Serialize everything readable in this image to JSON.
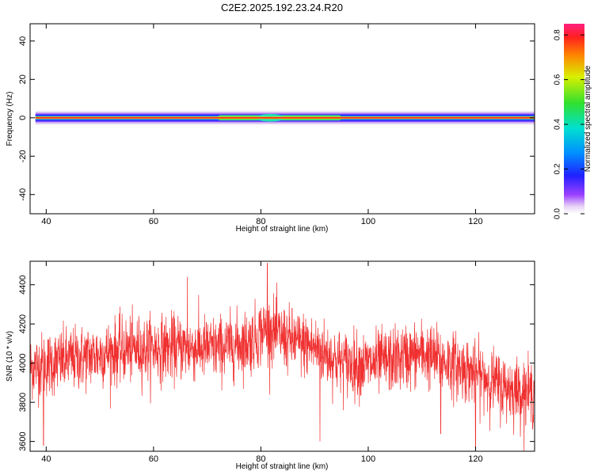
{
  "title": "C2E2.2025.192.23.24.R20",
  "colors": {
    "frame": "#000000",
    "snr_line": "#f03030",
    "background": "#ffffff"
  },
  "chart_data": [
    {
      "type": "heatmap",
      "xlabel": "Height of straight line (km)",
      "ylabel": "Frequency (Hz)",
      "xlim": [
        37,
        131
      ],
      "ylim": [
        -50,
        49
      ],
      "xticks": [
        40,
        60,
        80,
        100,
        120
      ],
      "yticks": [
        40,
        20,
        0,
        -20,
        -40
      ],
      "colormap": "rainbow (white-purple-blue-cyan-green-yellow-red-magenta)",
      "band": {
        "center_frequency": 0,
        "x_start": 38,
        "x_end": 131,
        "peak_amplitude": 0.8,
        "half_width_hz": 3,
        "brighter_region": [
          72,
          95
        ]
      },
      "colorbar": {
        "label": "Normalized spectral amplitude",
        "range": [
          0.0,
          0.85
        ],
        "ticks": [
          "0.0",
          "0.2",
          "0.4",
          "0.6",
          "0.8"
        ]
      }
    },
    {
      "type": "line",
      "xlabel": "Height of straight line (km)",
      "ylabel": "SNR (10 * v/v)",
      "xlim": [
        37,
        131
      ],
      "ylim": [
        3550,
        4520
      ],
      "xticks": [
        40,
        60,
        80,
        100,
        120
      ],
      "yticks": [
        3600,
        3800,
        4000,
        4200,
        4400
      ],
      "trend": {
        "x": [
          37,
          45,
          55,
          65,
          72,
          78,
          81,
          85,
          90,
          95,
          100,
          105,
          110,
          115,
          120,
          125,
          131
        ],
        "y": [
          3980,
          4020,
          4070,
          4080,
          4075,
          4110,
          4180,
          4120,
          4080,
          4000,
          3990,
          4020,
          4050,
          4000,
          3950,
          3880,
          3840
        ]
      },
      "noise_amplitude": 110,
      "spikes": [
        {
          "x": 81.2,
          "y": 4510
        },
        {
          "x": 66.3,
          "y": 4440
        },
        {
          "x": 91.0,
          "y": 3600
        },
        {
          "x": 120.0,
          "y": 3560
        },
        {
          "x": 113.5,
          "y": 3640
        },
        {
          "x": 39.5,
          "y": 3580
        }
      ]
    }
  ]
}
